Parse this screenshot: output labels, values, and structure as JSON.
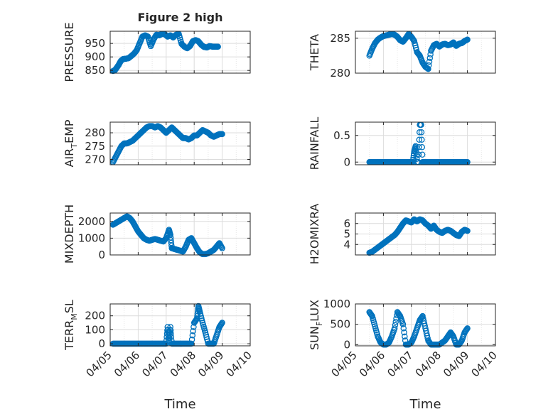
{
  "figure": {
    "xlabel": "Time"
  },
  "chart_data": [
    {
      "type": "scatter",
      "title": "Figure 2 high",
      "ylabel": "PRESSURE",
      "xlim": [
        0,
        5
      ],
      "ylim": [
        840,
        995
      ],
      "yticks": [
        850,
        900,
        950
      ],
      "grid": true,
      "x": [
        0.1,
        0.16,
        0.22,
        0.3,
        0.38,
        0.46,
        0.55,
        0.65,
        0.75,
        0.85,
        0.95,
        1.05,
        1.15,
        1.25,
        1.35,
        1.45,
        1.55,
        1.65,
        1.75,
        1.85,
        1.95,
        2.05,
        2.15,
        2.25,
        2.35,
        2.45,
        2.55,
        2.65,
        2.75,
        2.85,
        2.95,
        3.05,
        3.15,
        3.25,
        3.35,
        3.45,
        3.55,
        3.65,
        3.75,
        3.85
      ],
      "y": [
        848,
        850,
        858,
        870,
        885,
        892,
        893,
        895,
        903,
        912,
        925,
        950,
        975,
        980,
        975,
        940,
        965,
        982,
        980,
        985,
        984,
        975,
        980,
        972,
        982,
        985,
        948,
        938,
        932,
        940,
        958,
        962,
        958,
        945,
        937,
        935,
        940,
        938,
        938,
        938
      ]
    },
    {
      "type": "scatter",
      "title": "",
      "ylabel": "THETA",
      "xlim": [
        0,
        5
      ],
      "ylim": [
        280,
        286
      ],
      "yticks": [
        280,
        285
      ],
      "grid": true,
      "x": [
        0.5,
        0.6,
        0.7,
        0.8,
        0.9,
        1.0,
        1.1,
        1.2,
        1.3,
        1.4,
        1.5,
        1.6,
        1.7,
        1.8,
        1.9,
        2.0,
        2.1,
        2.2,
        2.3,
        2.4,
        2.5,
        2.6,
        2.7,
        2.8,
        2.9,
        3.0,
        3.1,
        3.2,
        3.3,
        3.4,
        3.5,
        3.6,
        3.7,
        3.8,
        3.9,
        4.0
      ],
      "y": [
        282.5,
        283.5,
        284.3,
        284.8,
        285.1,
        285.3,
        285.4,
        285.5,
        285.6,
        285.5,
        285.2,
        284.7,
        284.5,
        285.0,
        285.6,
        285.2,
        284.6,
        283.0,
        282.5,
        281.5,
        280.9,
        280.6,
        283.2,
        284.0,
        284.2,
        283.8,
        284.1,
        284.2,
        284.0,
        284.1,
        284.4,
        283.9,
        284.2,
        284.3,
        284.6,
        284.8
      ]
    },
    {
      "type": "scatter",
      "title": "",
      "ylabel": "AIR_TEMP",
      "xlim": [
        0,
        5
      ],
      "ylim": [
        268,
        284
      ],
      "yticks": [
        270,
        275,
        280
      ],
      "grid": true,
      "x": [
        0.1,
        0.2,
        0.3,
        0.4,
        0.5,
        0.6,
        0.7,
        0.8,
        0.9,
        1.0,
        1.1,
        1.2,
        1.3,
        1.4,
        1.5,
        1.6,
        1.7,
        1.8,
        1.9,
        2.0,
        2.1,
        2.2,
        2.3,
        2.4,
        2.5,
        2.6,
        2.7,
        2.8,
        2.9,
        3.0,
        3.1,
        3.2,
        3.3,
        3.4,
        3.5,
        3.6,
        3.7,
        3.8,
        3.9,
        4.0
      ],
      "y": [
        269,
        271,
        273,
        275,
        276,
        276,
        276.5,
        277,
        278,
        279,
        280,
        281,
        282,
        282.5,
        282.5,
        282,
        282.5,
        282,
        281,
        280,
        281,
        282,
        281,
        280,
        279,
        278,
        278,
        277.5,
        278,
        279,
        279,
        280,
        281,
        280.5,
        280,
        279,
        278.5,
        279,
        279.5,
        279.5
      ]
    },
    {
      "type": "scatter",
      "title": "",
      "ylabel": "RAINFALL",
      "xlim": [
        0,
        5
      ],
      "ylim": [
        -0.05,
        0.75
      ],
      "yticks": [
        0,
        0.5
      ],
      "grid": true,
      "x": [
        0.5,
        0.6,
        0.7,
        0.8,
        0.9,
        1.0,
        1.1,
        1.2,
        1.3,
        1.4,
        1.5,
        1.6,
        1.7,
        1.8,
        1.9,
        2.0,
        2.05,
        2.1,
        2.15,
        2.2,
        2.25,
        2.3,
        2.35,
        2.4,
        2.45,
        2.5,
        2.6,
        2.7,
        2.8,
        2.9,
        3.0,
        3.1,
        3.2,
        3.3,
        3.4,
        3.5,
        3.6,
        3.7,
        3.8,
        3.9,
        4.0
      ],
      "y": [
        0,
        0,
        0,
        0,
        0,
        0,
        0,
        0,
        0,
        0,
        0,
        0,
        0,
        0,
        0,
        0,
        0,
        0.2,
        0.3,
        0,
        0,
        0.7,
        0.7,
        0,
        0,
        0,
        0,
        0,
        0,
        0,
        0,
        0,
        0,
        0,
        0,
        0,
        0,
        0,
        0,
        0,
        0
      ]
    },
    {
      "type": "scatter",
      "title": "",
      "ylabel": "MIXDEPTH",
      "xlim": [
        0,
        5
      ],
      "ylim": [
        0,
        2500
      ],
      "yticks": [
        0,
        1000,
        2000
      ],
      "grid": true,
      "x": [
        0.1,
        0.2,
        0.3,
        0.4,
        0.5,
        0.6,
        0.7,
        0.8,
        0.9,
        1.0,
        1.1,
        1.2,
        1.3,
        1.4,
        1.5,
        1.6,
        1.7,
        1.8,
        1.9,
        2.0,
        2.1,
        2.15,
        2.2,
        2.3,
        2.4,
        2.5,
        2.6,
        2.7,
        2.8,
        2.9,
        3.0,
        3.1,
        3.2,
        3.3,
        3.4,
        3.5,
        3.6,
        3.7,
        3.8,
        3.9,
        4.0
      ],
      "y": [
        1800,
        1900,
        2000,
        2100,
        2200,
        2300,
        2200,
        2000,
        1700,
        1400,
        1200,
        1000,
        900,
        850,
        900,
        950,
        900,
        850,
        800,
        1000,
        1500,
        1200,
        400,
        350,
        300,
        250,
        200,
        500,
        900,
        1000,
        700,
        400,
        150,
        50,
        50,
        100,
        200,
        300,
        500,
        700,
        400
      ]
    },
    {
      "type": "scatter",
      "title": "",
      "ylabel": "H2OMIXRA",
      "xlim": [
        0,
        5
      ],
      "ylim": [
        3,
        7
      ],
      "yticks": [
        4,
        5,
        6
      ],
      "grid": true,
      "x": [
        0.5,
        0.6,
        0.7,
        0.8,
        0.9,
        1.0,
        1.1,
        1.2,
        1.3,
        1.4,
        1.5,
        1.6,
        1.7,
        1.8,
        1.9,
        2.0,
        2.1,
        2.2,
        2.3,
        2.4,
        2.5,
        2.6,
        2.7,
        2.8,
        2.9,
        3.0,
        3.1,
        3.2,
        3.3,
        3.4,
        3.5,
        3.6,
        3.7,
        3.8,
        3.9,
        4.0
      ],
      "y": [
        3.2,
        3.3,
        3.5,
        3.7,
        3.9,
        4.1,
        4.3,
        4.5,
        4.7,
        4.9,
        5.2,
        5.6,
        6.0,
        6.3,
        6.2,
        6.1,
        6.4,
        6.2,
        6.4,
        6.3,
        6.0,
        5.8,
        5.5,
        5.8,
        5.4,
        5.2,
        5.1,
        5.3,
        5.4,
        5.3,
        5.1,
        4.9,
        4.8,
        5.2,
        5.4,
        5.3
      ]
    },
    {
      "type": "scatter",
      "title": "",
      "ylabel": "TERR_MSL",
      "xlim": [
        0,
        5
      ],
      "ylim": [
        -15,
        285
      ],
      "yticks": [
        0,
        100,
        200
      ],
      "grid": true,
      "x": [
        0.1,
        0.2,
        0.3,
        0.4,
        0.5,
        0.6,
        0.7,
        0.8,
        0.9,
        1.0,
        1.1,
        1.2,
        1.3,
        1.4,
        1.5,
        1.6,
        1.7,
        1.8,
        1.9,
        2.0,
        2.05,
        2.1,
        2.15,
        2.2,
        2.3,
        2.4,
        2.5,
        2.6,
        2.7,
        2.8,
        2.9,
        3.0,
        3.1,
        3.15,
        3.2,
        3.3,
        3.4,
        3.5,
        3.6,
        3.7,
        3.8,
        3.9,
        4.0
      ],
      "y": [
        0,
        0,
        0,
        0,
        0,
        0,
        0,
        0,
        0,
        0,
        0,
        0,
        0,
        0,
        0,
        0,
        0,
        0,
        0,
        0,
        120,
        20,
        120,
        0,
        0,
        0,
        0,
        0,
        0,
        0,
        0,
        150,
        180,
        270,
        230,
        150,
        80,
        0,
        0,
        0,
        60,
        120,
        150
      ]
    },
    {
      "type": "scatter",
      "title": "",
      "ylabel": "SUN_FLUX",
      "xlim": [
        0,
        5
      ],
      "ylim": [
        -30,
        1000
      ],
      "yticks": [
        0,
        500,
        1000
      ],
      "grid": true,
      "x": [
        0.5,
        0.6,
        0.7,
        0.8,
        0.9,
        1.0,
        1.1,
        1.2,
        1.3,
        1.4,
        1.5,
        1.6,
        1.7,
        1.8,
        1.9,
        2.0,
        2.1,
        2.2,
        2.3,
        2.4,
        2.5,
        2.6,
        2.7,
        2.8,
        2.9,
        3.0,
        3.1,
        3.2,
        3.3,
        3.4,
        3.5,
        3.6,
        3.7,
        3.8,
        3.9,
        4.0
      ],
      "y": [
        800,
        700,
        450,
        200,
        50,
        0,
        0,
        50,
        200,
        400,
        800,
        700,
        500,
        0,
        0,
        50,
        200,
        400,
        600,
        700,
        400,
        100,
        0,
        0,
        0,
        0,
        50,
        100,
        200,
        300,
        200,
        0,
        0,
        100,
        300,
        400
      ]
    }
  ],
  "xticks": [
    "04/05",
    "04/06",
    "04/07",
    "04/08",
    "04/09",
    "04/10"
  ],
  "colors": {
    "marker": "#0072BD",
    "axis": "#262626",
    "grid": "#dcdcdc"
  }
}
